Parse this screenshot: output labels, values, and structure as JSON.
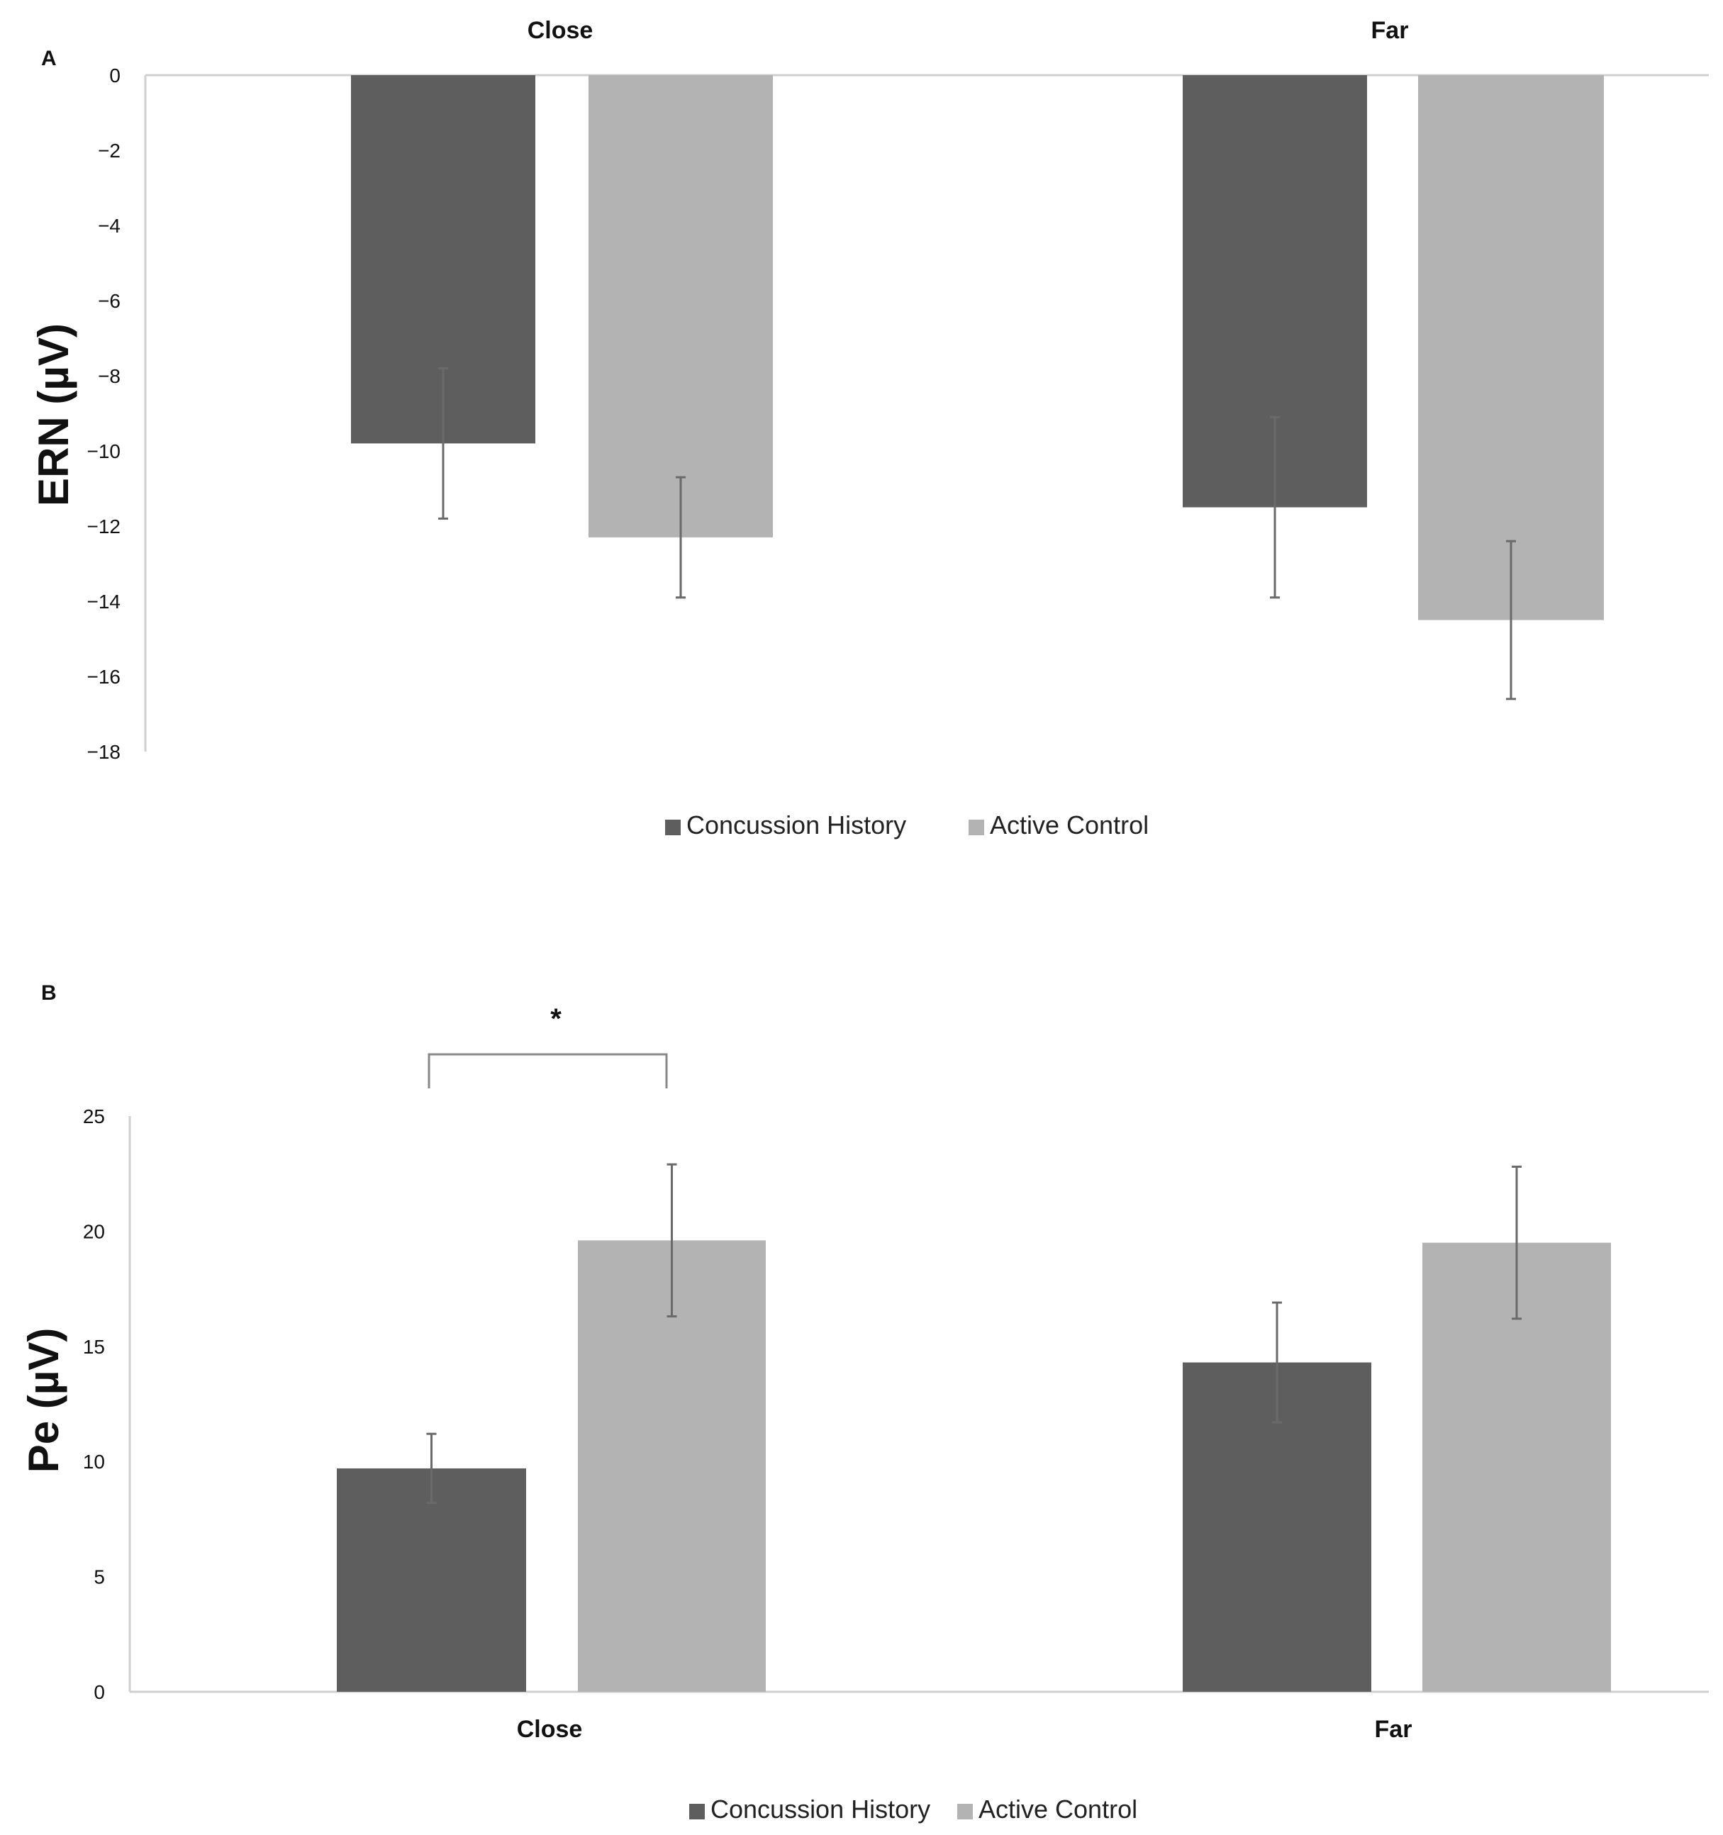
{
  "chart_data": [
    {
      "type": "bar",
      "panel_label": "A",
      "categories": [
        "Close",
        "Far"
      ],
      "category_label_position": "top",
      "ylabel": "ERN (µV)",
      "ylim": [
        -18,
        0
      ],
      "yticks": [
        0,
        -2,
        -4,
        -6,
        -8,
        -10,
        -12,
        -14,
        -16,
        -18
      ],
      "ytick_labels": [
        "0",
        "−2",
        "−4",
        "−6",
        "−8",
        "−10",
        "−12",
        "−14",
        "−16",
        "−18"
      ],
      "series": [
        {
          "name": "Concussion History",
          "color": "#5e5e5e",
          "values": [
            -9.8,
            -11.5
          ],
          "error": [
            2.0,
            2.4
          ]
        },
        {
          "name": "Active Control",
          "color": "#b3b3b3",
          "values": [
            -12.3,
            -14.5
          ],
          "error": [
            1.6,
            2.1
          ]
        }
      ],
      "legend": "bottom"
    },
    {
      "type": "bar",
      "panel_label": "B",
      "categories": [
        "Close",
        "Far"
      ],
      "category_label_position": "bottom",
      "ylabel": "Pe (µV)",
      "ylim": [
        0,
        25
      ],
      "yticks": [
        0,
        5,
        10,
        15,
        20,
        25
      ],
      "ytick_labels": [
        "0",
        "5",
        "10",
        "15",
        "20",
        "25"
      ],
      "series": [
        {
          "name": "Concussion History",
          "color": "#5e5e5e",
          "values": [
            9.7,
            14.3
          ],
          "error": [
            1.5,
            2.6
          ]
        },
        {
          "name": "Active Control",
          "color": "#b3b3b3",
          "values": [
            19.6,
            19.5
          ],
          "error": [
            3.3,
            3.3
          ]
        }
      ],
      "significance": {
        "category": "Close",
        "label": "*"
      },
      "legend": "bottom"
    }
  ]
}
